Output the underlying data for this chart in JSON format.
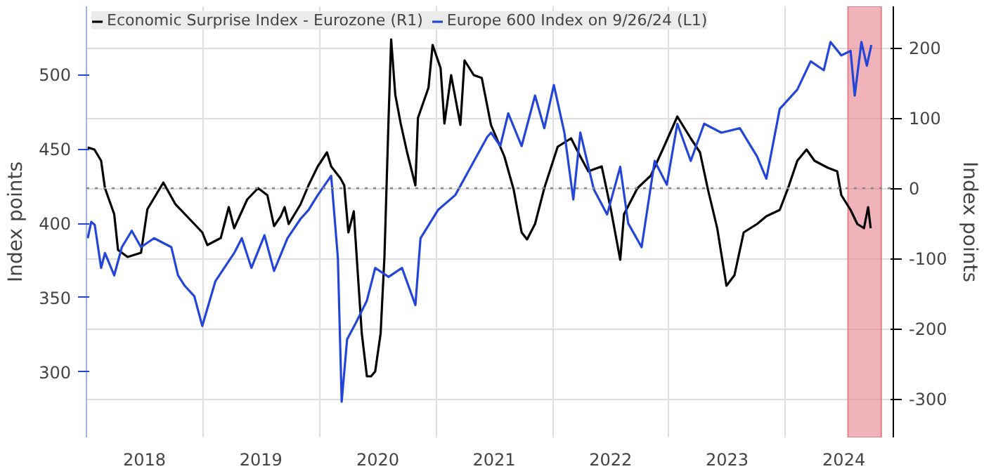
{
  "chart_data": {
    "type": "line",
    "ylabel": "Index points",
    "y2label": "Index points",
    "xlim": [
      "2018-01-01",
      "2024-12-04"
    ],
    "xticks": [
      {
        "value": "2018-07-02",
        "label": "2018"
      },
      {
        "value": "2019-07-02",
        "label": "2019"
      },
      {
        "value": "2020-07-02",
        "label": "2020"
      },
      {
        "value": "2021-07-02",
        "label": "2021"
      },
      {
        "value": "2022-07-02",
        "label": "2022"
      },
      {
        "value": "2023-07-02",
        "label": "2023"
      },
      {
        "value": "2024-07-02",
        "label": "2024"
      },
      {
        "value": "2019-01-01",
        "label": null
      },
      {
        "value": "2020-01-01",
        "label": null
      },
      {
        "value": "2021-01-01",
        "label": null
      },
      {
        "value": "2022-01-01",
        "label": null
      },
      {
        "value": "2023-01-01",
        "label": null
      },
      {
        "value": "2024-01-01",
        "label": null
      }
    ],
    "ylim": [
      256,
      546
    ],
    "yticks": [
      300,
      350,
      400,
      450,
      500
    ],
    "y2lim": [
      -355,
      259
    ],
    "y2ticks": [
      -300,
      -200,
      -100,
      0,
      100,
      200
    ],
    "grid": true,
    "legend": "top left",
    "ref_lines": [
      {
        "axis": "y2",
        "value": 0,
        "label": null,
        "color": "#888888",
        "line_style": "dotted"
      }
    ],
    "bands": [
      {
        "axis": "x",
        "from": "2024-07-15",
        "to": "2024-10-27",
        "label": null,
        "color": "#e8808c"
      }
    ],
    "series": [
      {
        "name": "Economic Surprise Index - Eurozone (R1)",
        "color": "#000000",
        "axis": "y2",
        "x": [
          "2018-01-05",
          "2018-01-26",
          "2018-02-16",
          "2018-02-28",
          "2018-03-29",
          "2018-04-10",
          "2018-05-10",
          "2018-06-21",
          "2018-07-11",
          "2018-08-30",
          "2018-10-07",
          "2018-12-05",
          "2018-12-30",
          "2019-01-15",
          "2019-02-26",
          "2019-03-23",
          "2019-04-09",
          "2019-05-20",
          "2019-06-23",
          "2019-07-22",
          "2019-08-12",
          "2019-09-02",
          "2019-09-14",
          "2019-09-27",
          "2019-11-03",
          "2019-11-28",
          "2019-12-27",
          "2020-01-25",
          "2020-02-07",
          "2020-03-07",
          "2020-03-19",
          "2020-04-01",
          "2020-04-18",
          "2020-04-22",
          "2020-05-13",
          "2020-05-29",
          "2020-06-11",
          "2020-06-24",
          "2020-07-11",
          "2020-07-23",
          "2020-08-05",
          "2020-08-13",
          "2020-08-26",
          "2020-09-12",
          "2020-10-02",
          "2020-10-28",
          "2020-11-05",
          "2020-12-08",
          "2020-12-21",
          "2021-01-15",
          "2021-01-27",
          "2021-02-17",
          "2021-03-18",
          "2021-03-31",
          "2021-04-29",
          "2021-05-24",
          "2021-06-22",
          "2021-08-03",
          "2021-09-01",
          "2021-09-26",
          "2021-10-13",
          "2021-11-07",
          "2021-12-06",
          "2022-01-17",
          "2022-02-28",
          "2022-03-29",
          "2022-04-23",
          "2022-06-04",
          "2022-07-03",
          "2022-08-01",
          "2022-08-13",
          "2022-09-24",
          "2022-11-05",
          "2022-12-16",
          "2023-01-27",
          "2023-03-10",
          "2023-04-08",
          "2023-05-03",
          "2023-06-01",
          "2023-06-30",
          "2023-07-25",
          "2023-08-23",
          "2023-10-04",
          "2023-11-02",
          "2023-12-14",
          "2024-01-09",
          "2024-02-07",
          "2024-03-07",
          "2024-04-01",
          "2024-05-13",
          "2024-06-11",
          "2024-06-24",
          "2024-07-23",
          "2024-08-13",
          "2024-09-03",
          "2024-09-16",
          "2024-09-24"
        ],
        "values": [
          58,
          55,
          39,
          0,
          -37,
          -88,
          -98,
          -92,
          -30,
          8,
          -23,
          -51,
          -63,
          -81,
          -71,
          -27,
          -57,
          -16,
          0,
          -10,
          -54,
          -40,
          -27,
          -51,
          -23,
          4,
          31,
          51,
          31,
          14,
          4,
          -63,
          -33,
          -63,
          -207,
          -268,
          -268,
          -261,
          -207,
          -98,
          100,
          212,
          133,
          92,
          51,
          4,
          100,
          143,
          204,
          171,
          92,
          161,
          90,
          182,
          161,
          157,
          90,
          45,
          -2,
          -63,
          -73,
          -51,
          0,
          59,
          71,
          45,
          24,
          31,
          -31,
          -102,
          -37,
          0,
          18,
          59,
          102,
          71,
          51,
          -2,
          -57,
          -139,
          -124,
          -63,
          -51,
          -40,
          -31,
          0,
          39,
          55,
          39,
          29,
          24,
          -10,
          -31,
          -51,
          -57,
          -27,
          -57
        ]
      },
      {
        "name": "Europe 600 Index on 9/26/24 (L1)",
        "color": "#2446d8",
        "axis": "y",
        "x": [
          "2018-01-05",
          "2018-01-16",
          "2018-01-27",
          "2018-02-16",
          "2018-02-28",
          "2018-03-29",
          "2018-04-22",
          "2018-05-23",
          "2018-06-21",
          "2018-08-01",
          "2018-09-24",
          "2018-10-15",
          "2018-11-05",
          "2018-12-05",
          "2018-12-30",
          "2019-02-09",
          "2019-04-09",
          "2019-05-03",
          "2019-06-02",
          "2019-07-13",
          "2019-08-12",
          "2019-09-23",
          "2019-11-03",
          "2019-11-28",
          "2019-12-27",
          "2020-02-07",
          "2020-02-28",
          "2020-03-11",
          "2020-03-28",
          "2020-04-22",
          "2020-05-29",
          "2020-06-24",
          "2020-08-05",
          "2020-09-16",
          "2020-10-28",
          "2020-11-13",
          "2021-01-07",
          "2021-03-02",
          "2021-04-12",
          "2021-06-10",
          "2021-06-22",
          "2021-07-21",
          "2021-08-15",
          "2021-09-26",
          "2021-11-07",
          "2021-12-06",
          "2022-01-05",
          "2022-02-07",
          "2022-03-07",
          "2022-03-29",
          "2022-05-10",
          "2022-06-21",
          "2022-08-01",
          "2022-08-26",
          "2022-10-07",
          "2022-11-17",
          "2022-12-25",
          "2023-01-27",
          "2023-03-10",
          "2023-04-21",
          "2023-06-14",
          "2023-08-11",
          "2023-10-04",
          "2023-11-02",
          "2023-12-14",
          "2024-02-07",
          "2024-03-20",
          "2024-04-30",
          "2024-05-21",
          "2024-06-24",
          "2024-07-23",
          "2024-08-05",
          "2024-08-26",
          "2024-09-12",
          "2024-09-26"
        ],
        "values": [
          390,
          401,
          399,
          370,
          380,
          365,
          384,
          395,
          384,
          390,
          384,
          365,
          358,
          351,
          331,
          361,
          380,
          390,
          370,
          392,
          368,
          390,
          403,
          409,
          419,
          432,
          377,
          280,
          322,
          332,
          348,
          370,
          364,
          370,
          345,
          390,
          409,
          419,
          435,
          458,
          461,
          452,
          474,
          452,
          486,
          464,
          493,
          461,
          416,
          461,
          423,
          406,
          438,
          400,
          384,
          442,
          426,
          467,
          442,
          467,
          461,
          464,
          445,
          430,
          477,
          490,
          509,
          503,
          522,
          513,
          516,
          486,
          522,
          506,
          520
        ]
      }
    ]
  }
}
